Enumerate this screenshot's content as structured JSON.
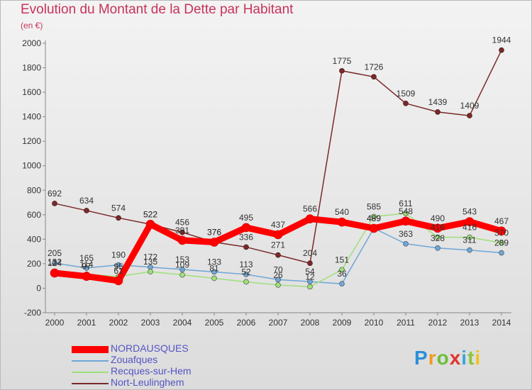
{
  "title": "Evolution du Montant de la Dette par Habitant",
  "subtitle": "(en €)",
  "logo": {
    "text": "Proxiti"
  },
  "chart_data": {
    "type": "line",
    "title": "Evolution du Montant de la Dette par Habitant",
    "ylabel": "(en €)",
    "xlabel": "",
    "ylim": [
      -200,
      2000
    ],
    "yticks": [
      -200,
      0,
      200,
      400,
      600,
      800,
      1000,
      1200,
      1400,
      1600,
      1800,
      2000
    ],
    "x": [
      "2000",
      "2001",
      "2002",
      "2003",
      "2004",
      "2005",
      "2006",
      "2007",
      "2008",
      "2009",
      "2010",
      "2011",
      "2012",
      "2013",
      "2014"
    ],
    "grid": false,
    "legend_position": "bottom-left",
    "series": [
      {
        "name": "NORDAUSQUES",
        "color": "#ff0000",
        "values": [
          124,
          97,
          61,
          522,
          391,
          376,
          495,
          437,
          566,
          540,
          489,
          548,
          490,
          543,
          467
        ]
      },
      {
        "name": "Zouafques",
        "color": "#6ea6d8",
        "values": [
          205,
          165,
          190,
          172,
          153,
          133,
          113,
          70,
          54,
          36,
          489,
          363,
          328,
          311,
          289
        ]
      },
      {
        "name": "Recques-sur-Hem",
        "color": "#9ee07a",
        "values": [
          132,
          114,
          95,
          135,
          109,
          81,
          52,
          26,
          12,
          151,
          585,
          611,
          416,
          416,
          370
        ]
      },
      {
        "name": "Nort-Leulinghem",
        "color": "#7a2a2a",
        "values": [
          692,
          634,
          574,
          522,
          456,
          376,
          336,
          271,
          204,
          1775,
          1726,
          1509,
          1439,
          1409,
          1944
        ]
      }
    ],
    "data_labels": [
      {
        "series": 0,
        "labels": [
          "124",
          "97",
          "61",
          "522",
          "391",
          "376",
          "495",
          "437",
          "566",
          "540",
          "489",
          "548",
          "490",
          "543",
          "467"
        ]
      },
      {
        "series": 1,
        "labels": [
          "205",
          "165",
          "190",
          "172",
          "153",
          "133",
          "113",
          "70",
          "54",
          "36",
          "489",
          "363",
          "328",
          "311",
          "289"
        ]
      },
      {
        "series": 2,
        "labels": [
          "132",
          "114",
          "95",
          "135",
          "109",
          "81",
          "52",
          "26",
          "12",
          "151",
          "585",
          "611",
          "416",
          "416",
          "370"
        ]
      },
      {
        "series": 3,
        "labels": [
          "692",
          "634",
          "574",
          "522",
          "456",
          "376",
          "336",
          "271",
          "204",
          "1775",
          "1726",
          "1509",
          "1439",
          "1409",
          "1944"
        ]
      }
    ]
  }
}
